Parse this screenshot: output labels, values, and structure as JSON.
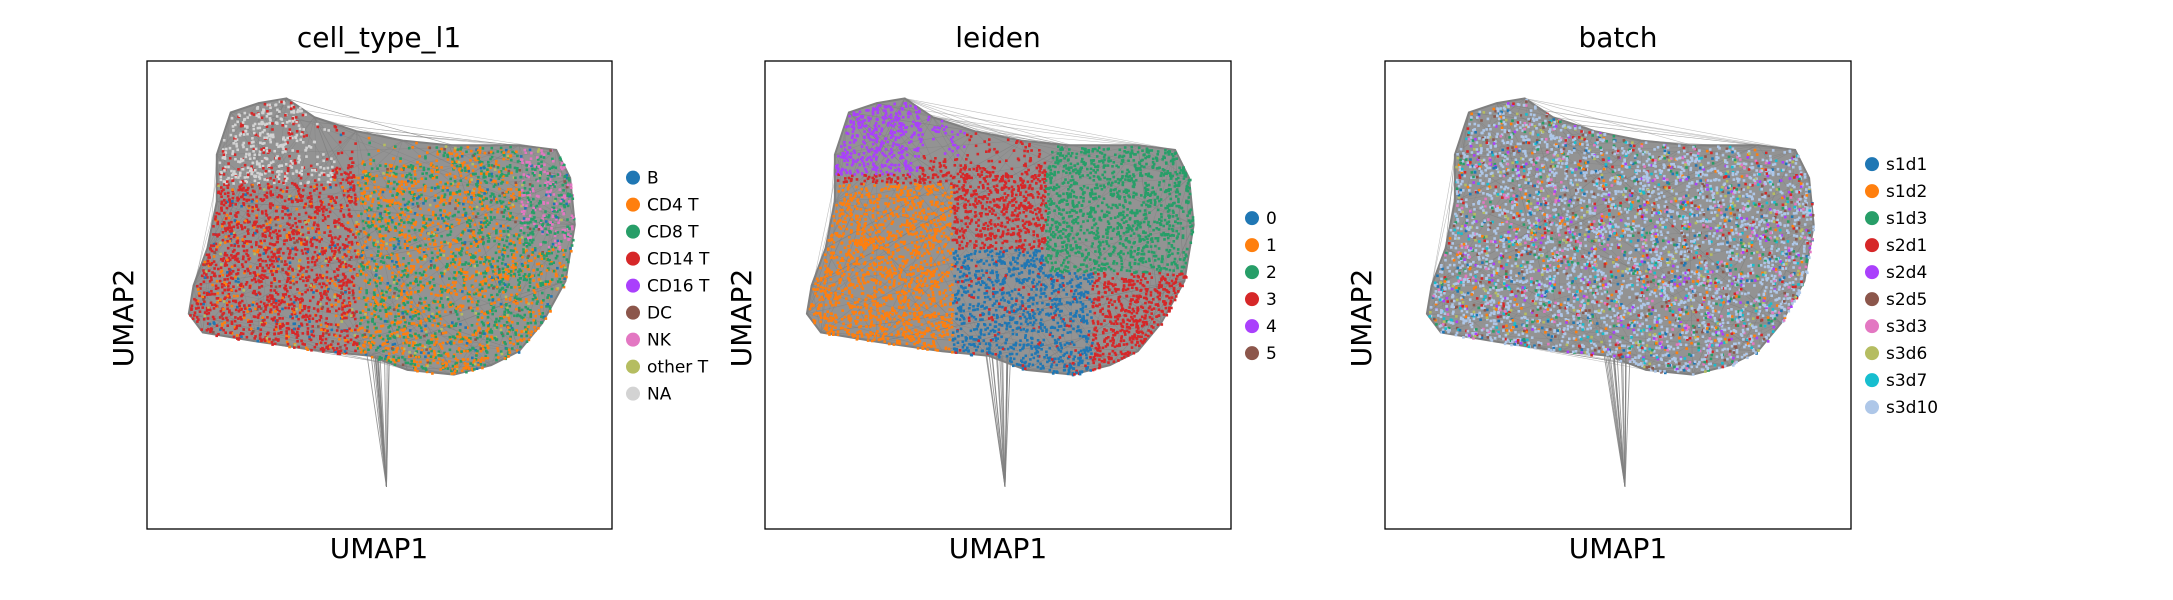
{
  "chart_data": [
    {
      "type": "scatter",
      "title": "cell_type_l1",
      "xlabel": "UMAP1",
      "ylabel": "UMAP2",
      "grid": false,
      "legend": "right",
      "legend_entries": [
        {
          "label": "B",
          "color": "#1f77b4"
        },
        {
          "label": "CD4 T",
          "color": "#ff7f0e"
        },
        {
          "label": "CD8 T",
          "color": "#279e68"
        },
        {
          "label": "CD14 T",
          "color": "#d62728"
        },
        {
          "label": "CD16 T",
          "color": "#aa40fc"
        },
        {
          "label": "DC",
          "color": "#8c564b"
        },
        {
          "label": "NK",
          "color": "#e377c2"
        },
        {
          "label": "other T",
          "color": "#b5bd61"
        },
        {
          "label": "NA",
          "color": "#d3d3d3"
        }
      ]
    },
    {
      "type": "scatter",
      "title": "leiden",
      "xlabel": "UMAP1",
      "ylabel": "UMAP2",
      "grid": false,
      "legend": "right",
      "legend_entries": [
        {
          "label": "0",
          "color": "#1f77b4"
        },
        {
          "label": "1",
          "color": "#ff7f0e"
        },
        {
          "label": "2",
          "color": "#279e68"
        },
        {
          "label": "3",
          "color": "#d62728"
        },
        {
          "label": "4",
          "color": "#aa40fc"
        },
        {
          "label": "5",
          "color": "#8c564b"
        }
      ]
    },
    {
      "type": "scatter",
      "title": "batch",
      "xlabel": "UMAP1",
      "ylabel": "UMAP2",
      "grid": false,
      "legend": "right",
      "legend_entries": [
        {
          "label": "s1d1",
          "color": "#1f77b4"
        },
        {
          "label": "s1d2",
          "color": "#ff7f0e"
        },
        {
          "label": "s1d3",
          "color": "#279e68"
        },
        {
          "label": "s2d1",
          "color": "#d62728"
        },
        {
          "label": "s2d4",
          "color": "#aa40fc"
        },
        {
          "label": "s2d5",
          "color": "#8c564b"
        },
        {
          "label": "s3d3",
          "color": "#e377c2"
        },
        {
          "label": "s3d6",
          "color": "#b5bd61"
        },
        {
          "label": "s3d7",
          "color": "#17becf"
        },
        {
          "label": "s3d10",
          "color": "#aec7e8"
        }
      ]
    }
  ],
  "edge_color": "#808080"
}
